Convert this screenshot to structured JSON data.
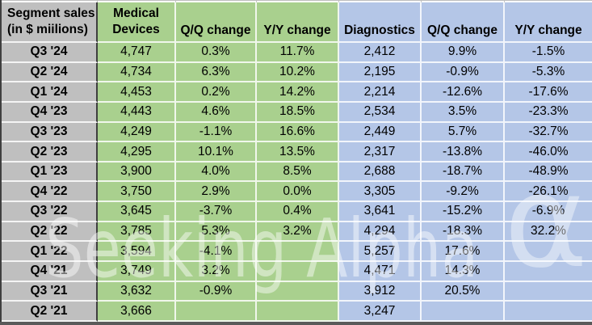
{
  "colors": {
    "medical_fill": "#a9d08e",
    "diagnostics_fill": "#b4c6e7",
    "quarter_fill": "#bfbfbf",
    "dark_border": "#3f3f3f",
    "bottom_edge": "#5a5a5a",
    "text": "#000000",
    "divider": "#ffffff"
  },
  "watermark": {
    "text": "Seeking Alpha",
    "symbol": "α"
  },
  "chart_data": {
    "type": "table",
    "title": "Segment sales (in $ miilions)",
    "corner_header": "Segment sales\n(in $ miilions)",
    "columns": [
      {
        "key": "quarter",
        "label": "Segment sales\n(in $ miilions)",
        "fill": "gray",
        "two_line": true
      },
      {
        "key": "md",
        "label": "Medical\nDevices",
        "fill": "green",
        "two_line": true
      },
      {
        "key": "md_qq",
        "label": "Q/Q change",
        "fill": "green",
        "two_line": false
      },
      {
        "key": "md_yy",
        "label": "Y/Y change",
        "fill": "green",
        "two_line": false
      },
      {
        "key": "dx",
        "label": "Diagnostics",
        "fill": "blue",
        "two_line": false
      },
      {
        "key": "dx_qq",
        "label": "Q/Q change",
        "fill": "blue",
        "two_line": false
      },
      {
        "key": "dx_yy",
        "label": "Y/Y change",
        "fill": "blue",
        "two_line": false
      }
    ],
    "rows": [
      {
        "quarter": "Q3 '24",
        "md": "4,747",
        "md_qq": "0.3%",
        "md_yy": "11.7%",
        "dx": "2,412",
        "dx_qq": "9.9%",
        "dx_yy": "-1.5%"
      },
      {
        "quarter": "Q2 '24",
        "md": "4,734",
        "md_qq": "6.3%",
        "md_yy": "10.2%",
        "dx": "2,195",
        "dx_qq": "-0.9%",
        "dx_yy": "-5.3%"
      },
      {
        "quarter": "Q1 '24",
        "md": "4,453",
        "md_qq": "0.2%",
        "md_yy": "14.2%",
        "dx": "2,214",
        "dx_qq": "-12.6%",
        "dx_yy": "-17.6%"
      },
      {
        "quarter": "Q4 '23",
        "md": "4,443",
        "md_qq": "4.6%",
        "md_yy": "18.5%",
        "dx": "2,534",
        "dx_qq": "3.5%",
        "dx_yy": "-23.3%"
      },
      {
        "quarter": "Q3 '23",
        "md": "4,249",
        "md_qq": "-1.1%",
        "md_yy": "16.6%",
        "dx": "2,449",
        "dx_qq": "5.7%",
        "dx_yy": "-32.7%"
      },
      {
        "quarter": "Q2 '23",
        "md": "4,295",
        "md_qq": "10.1%",
        "md_yy": "13.5%",
        "dx": "2,317",
        "dx_qq": "-13.8%",
        "dx_yy": "-46.0%"
      },
      {
        "quarter": "Q1 '23",
        "md": "3,900",
        "md_qq": "4.0%",
        "md_yy": "8.5%",
        "dx": "2,688",
        "dx_qq": "-18.7%",
        "dx_yy": "-48.9%"
      },
      {
        "quarter": "Q4 '22",
        "md": "3,750",
        "md_qq": "2.9%",
        "md_yy": "0.0%",
        "dx": "3,305",
        "dx_qq": "-9.2%",
        "dx_yy": "-26.1%"
      },
      {
        "quarter": "Q3 '22",
        "md": "3,645",
        "md_qq": "-3.7%",
        "md_yy": "0.4%",
        "dx": "3,641",
        "dx_qq": "-15.2%",
        "dx_yy": "-6.9%"
      },
      {
        "quarter": "Q2 '22",
        "md": "3,785",
        "md_qq": "5.3%",
        "md_yy": "3.2%",
        "dx": "4,294",
        "dx_qq": "-18.3%",
        "dx_yy": "32.2%"
      },
      {
        "quarter": "Q1 '22",
        "md": "3,594",
        "md_qq": "-4.1%",
        "md_yy": "",
        "dx": "5,257",
        "dx_qq": "17.6%",
        "dx_yy": ""
      },
      {
        "quarter": "Q4 '21",
        "md": "3,749",
        "md_qq": "3.2%",
        "md_yy": "",
        "dx": "4,471",
        "dx_qq": "14.3%",
        "dx_yy": ""
      },
      {
        "quarter": "Q3 '21",
        "md": "3,632",
        "md_qq": "-0.9%",
        "md_yy": "",
        "dx": "3,912",
        "dx_qq": "20.5%",
        "dx_yy": ""
      },
      {
        "quarter": "Q2 '21",
        "md": "3,666",
        "md_qq": "",
        "md_yy": "",
        "dx": "3,247",
        "dx_qq": "",
        "dx_yy": ""
      }
    ]
  }
}
